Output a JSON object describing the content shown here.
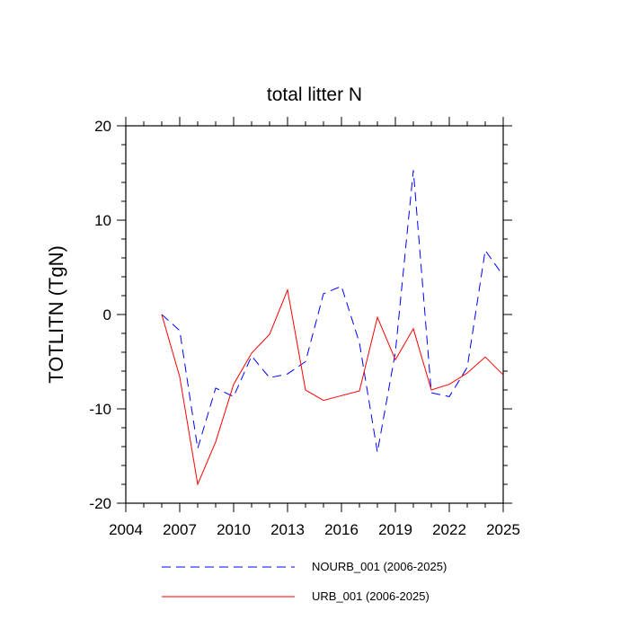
{
  "chart_data": {
    "type": "line",
    "title": "total litter N",
    "xlabel": "",
    "ylabel": "TOTLITN  (TgN)",
    "xlim": [
      2004,
      2025
    ],
    "ylim": [
      -20,
      20
    ],
    "x_ticks": [
      2004,
      2007,
      2010,
      2013,
      2016,
      2019,
      2022,
      2025
    ],
    "y_ticks": [
      -20,
      -10,
      0,
      10,
      20
    ],
    "x_tick_labels": [
      "2004",
      "2007",
      "2010",
      "2013",
      "2016",
      "2019",
      "2022",
      "2025"
    ],
    "y_tick_labels": [
      "-20",
      "-10",
      "0",
      "10",
      "20"
    ],
    "x": [
      2006,
      2007,
      2008,
      2009,
      2010,
      2011,
      2012,
      2013,
      2014,
      2015,
      2016,
      2017,
      2018,
      2019,
      2020,
      2021,
      2022,
      2023,
      2024,
      2025
    ],
    "series": [
      {
        "name": "NOURB_001 (2006-2025)",
        "color": "#0000ff",
        "style": "dashed",
        "values": [
          0.0,
          -1.7,
          -14.2,
          -7.8,
          -8.7,
          -4.4,
          -6.7,
          -6.3,
          -5.0,
          2.2,
          3.0,
          -3.0,
          -14.6,
          -4.0,
          15.3,
          -8.3,
          -8.7,
          -5.6,
          6.8,
          4.1
        ]
      },
      {
        "name": "URB_001 (2006-2025)",
        "color": "#ff0000",
        "style": "solid",
        "values": [
          0.0,
          -6.6,
          -18.0,
          -13.5,
          -7.4,
          -4.1,
          -2.1,
          2.6,
          -8.0,
          -9.1,
          -8.6,
          -8.1,
          -0.3,
          -4.8,
          -1.5,
          -8.0,
          -7.4,
          -6.2,
          -4.5,
          -6.4
        ]
      }
    ],
    "legend_position": "bottom"
  }
}
